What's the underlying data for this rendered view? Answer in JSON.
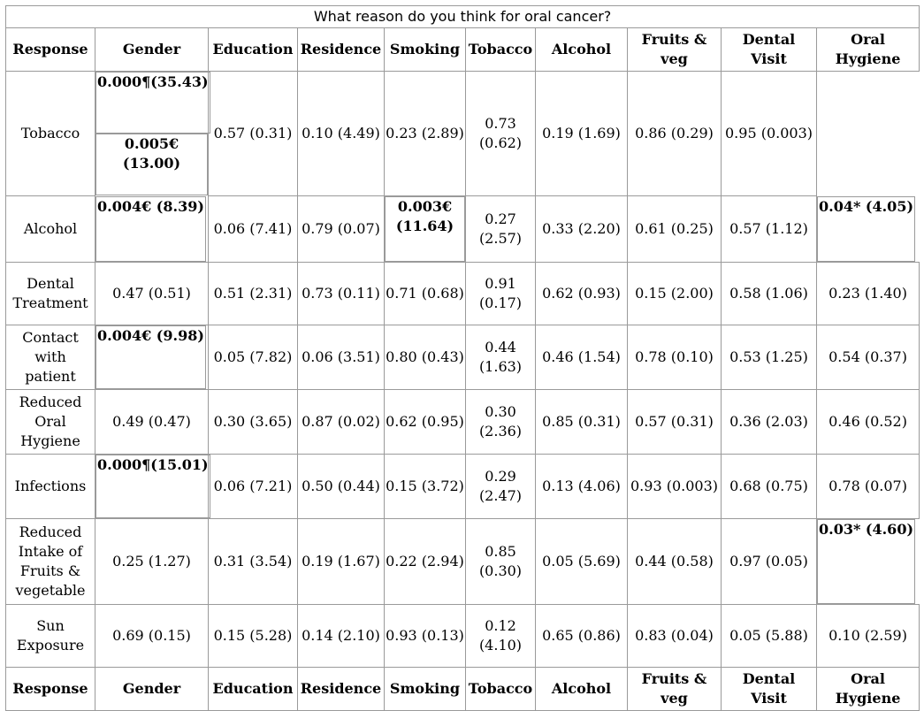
{
  "title": "What reason do you think for oral cancer?",
  "headers": [
    "Response",
    "Gender",
    "Education",
    "Residence",
    "Smoking",
    "Tobacco",
    "Alcohol",
    "Fruits & veg",
    "Dental Visit",
    "Oral Hygiene"
  ],
  "footer_headers": [
    "Response",
    "Gender",
    "Education",
    "Residence",
    "Smoking",
    "Tobacco",
    "Alcohol",
    "Fruits & veg",
    "Dental Visit",
    "Oral Hygiene"
  ],
  "rows": [
    {
      "response": "Tobacco",
      "cells": [
        {
          "text": "0.000¶(35.43)",
          "bold": true
        },
        {
          "text": "0.005€ (13.00)",
          "bold": true
        },
        {
          "text": "0.57 (0.31)",
          "bold": false
        },
        {
          "text": "0.10 (4.49)",
          "bold": false
        },
        {
          "text": "0.23 (2.89)",
          "bold": false
        },
        {
          "text": "0.73 (0.62)",
          "bold": false
        },
        {
          "text": "0.19 (1.69)",
          "bold": false
        },
        {
          "text": "0.86 (0.29)",
          "bold": false
        },
        {
          "text": "0.95 (0.003)",
          "bold": false
        }
      ]
    },
    {
      "response": "Alcohol",
      "cells": [
        {
          "text": "0.004€ (8.39)",
          "bold": true
        },
        {
          "text": "0.06 (7.41)",
          "bold": false
        },
        {
          "text": "0.79 (0.07)",
          "bold": false
        },
        {
          "text": "0.003€ (11.64)",
          "bold": true
        },
        {
          "text": "0.27 (2.57)",
          "bold": false
        },
        {
          "text": "0.33 (2.20)",
          "bold": false
        },
        {
          "text": "0.61 (0.25)",
          "bold": false
        },
        {
          "text": "0.57 (1.12)",
          "bold": false
        },
        {
          "text": "0.04* (4.05)",
          "bold": true
        }
      ]
    },
    {
      "response": "Dental Treatment",
      "cells": [
        {
          "text": "0.47 (0.51)",
          "bold": false
        },
        {
          "text": "0.51 (2.31)",
          "bold": false
        },
        {
          "text": "0.73 (0.11)",
          "bold": false
        },
        {
          "text": "0.71 (0.68)",
          "bold": false
        },
        {
          "text": "0.91 (0.17)",
          "bold": false
        },
        {
          "text": "0.62 (0.93)",
          "bold": false
        },
        {
          "text": "0.15 (2.00)",
          "bold": false
        },
        {
          "text": "0.58 (1.06)",
          "bold": false
        },
        {
          "text": "0.23 (1.40)",
          "bold": false
        }
      ]
    },
    {
      "response": "Contact with patient",
      "cells": [
        {
          "text": "0.004€ (9.98)",
          "bold": true
        },
        {
          "text": "0.05 (7.82)",
          "bold": false
        },
        {
          "text": "0.06 (3.51)",
          "bold": false
        },
        {
          "text": "0.80 (0.43)",
          "bold": false
        },
        {
          "text": "0.44 (1.63)",
          "bold": false
        },
        {
          "text": "0.46 (1.54)",
          "bold": false
        },
        {
          "text": "0.78 (0.10)",
          "bold": false
        },
        {
          "text": "0.53 (1.25)",
          "bold": false
        },
        {
          "text": "0.54 (0.37)",
          "bold": false
        }
      ]
    },
    {
      "response": "Reduced Oral Hygiene",
      "cells": [
        {
          "text": "0.49 (0.47)",
          "bold": false
        },
        {
          "text": "0.30 (3.65)",
          "bold": false
        },
        {
          "text": "0.87 (0.02)",
          "bold": false
        },
        {
          "text": "0.62 (0.95)",
          "bold": false
        },
        {
          "text": "0.30 (2.36)",
          "bold": false
        },
        {
          "text": "0.85 (0.31)",
          "bold": false
        },
        {
          "text": "0.57 (0.31)",
          "bold": false
        },
        {
          "text": "0.36 (2.03)",
          "bold": false
        },
        {
          "text": "0.46 (0.52)",
          "bold": false
        }
      ]
    },
    {
      "response": "Infections",
      "cells": [
        {
          "text": "0.000¶(15.01)",
          "bold": true
        },
        {
          "text": "0.06 (7.21)",
          "bold": false
        },
        {
          "text": "0.50 (0.44)",
          "bold": false
        },
        {
          "text": "0.15 (3.72)",
          "bold": false
        },
        {
          "text": "0.29 (2.47)",
          "bold": false
        },
        {
          "text": "0.13 (4.06)",
          "bold": false
        },
        {
          "text": "0.93 (0.003)",
          "bold": false
        },
        {
          "text": "0.68 (0.75)",
          "bold": false
        },
        {
          "text": "0.78 (0.07)",
          "bold": false
        }
      ]
    },
    {
      "response": "Reduced Intake of Fruits & vegetable",
      "cells": [
        {
          "text": "0.25 (1.27)",
          "bold": false
        },
        {
          "text": "0.31 (3.54)",
          "bold": false
        },
        {
          "text": "0.19 (1.67)",
          "bold": false
        },
        {
          "text": "0.22 (2.94)",
          "bold": false
        },
        {
          "text": "0.85 (0.30)",
          "bold": false
        },
        {
          "text": "0.05 (5.69)",
          "bold": false
        },
        {
          "text": "0.44 (0.58)",
          "bold": false
        },
        {
          "text": "0.97 (0.05)",
          "bold": false
        },
        {
          "text": "0.03* (4.60)",
          "bold": true
        }
      ]
    },
    {
      "response": "Sun Exposure",
      "cells": [
        {
          "text": "0.69 (0.15)",
          "bold": false
        },
        {
          "text": "0.15 (5.28)",
          "bold": false
        },
        {
          "text": "0.14 (2.10)",
          "bold": false
        },
        {
          "text": "0.93 (0.13)",
          "bold": false
        },
        {
          "text": "0.12 (4.10)",
          "bold": false
        },
        {
          "text": "0.65 (0.86)",
          "bold": false
        },
        {
          "text": "0.83 (0.04)",
          "bold": false
        },
        {
          "text": "0.05 (5.88)",
          "bold": false
        },
        {
          "text": "0.10 (2.59)",
          "bold": false
        }
      ]
    }
  ]
}
